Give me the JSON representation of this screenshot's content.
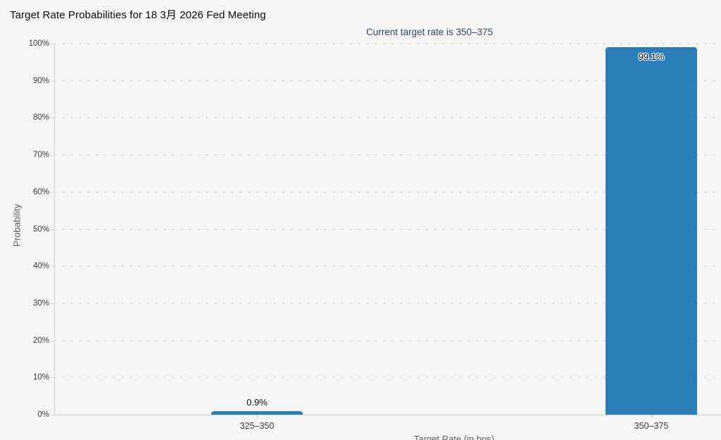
{
  "header": {
    "title": "Target Rate Probabilities for 18 3月 2026 Fed Meeting",
    "subtitle": "Current target rate is 350–375"
  },
  "chart_data": {
    "type": "bar",
    "title": "Target Rate Probabilities for 18 3月 2026 Fed Meeting",
    "subtitle": "Current target rate is 350–375",
    "categories": [
      "325–350",
      "350–375"
    ],
    "values": [
      0.9,
      99.1
    ],
    "value_labels": [
      "0.9%",
      "99.1%"
    ],
    "xlabel": "Target Rate (in bps)",
    "ylabel": "Probability",
    "ylim": [
      0,
      100
    ],
    "ytick_step": 10,
    "ytick_suffix": "%",
    "ytick_labels": [
      "0%",
      "10%",
      "20%",
      "30%",
      "40%",
      "50%",
      "60%",
      "70%",
      "80%",
      "90%",
      "100%"
    ],
    "grid": "dotted horizontal, right edge clipped",
    "legend": "none",
    "bar_color": "#2a7fb9"
  },
  "colors": {
    "background": "#f5f5f6",
    "bar": "#2a7fb9",
    "subtitle_text": "#2e4577",
    "axis_line": "#cfcfd1",
    "grid_dot": "#d9d9da",
    "tick_text": "#3c3c3c",
    "axis_title_text": "#5a5a5a"
  }
}
